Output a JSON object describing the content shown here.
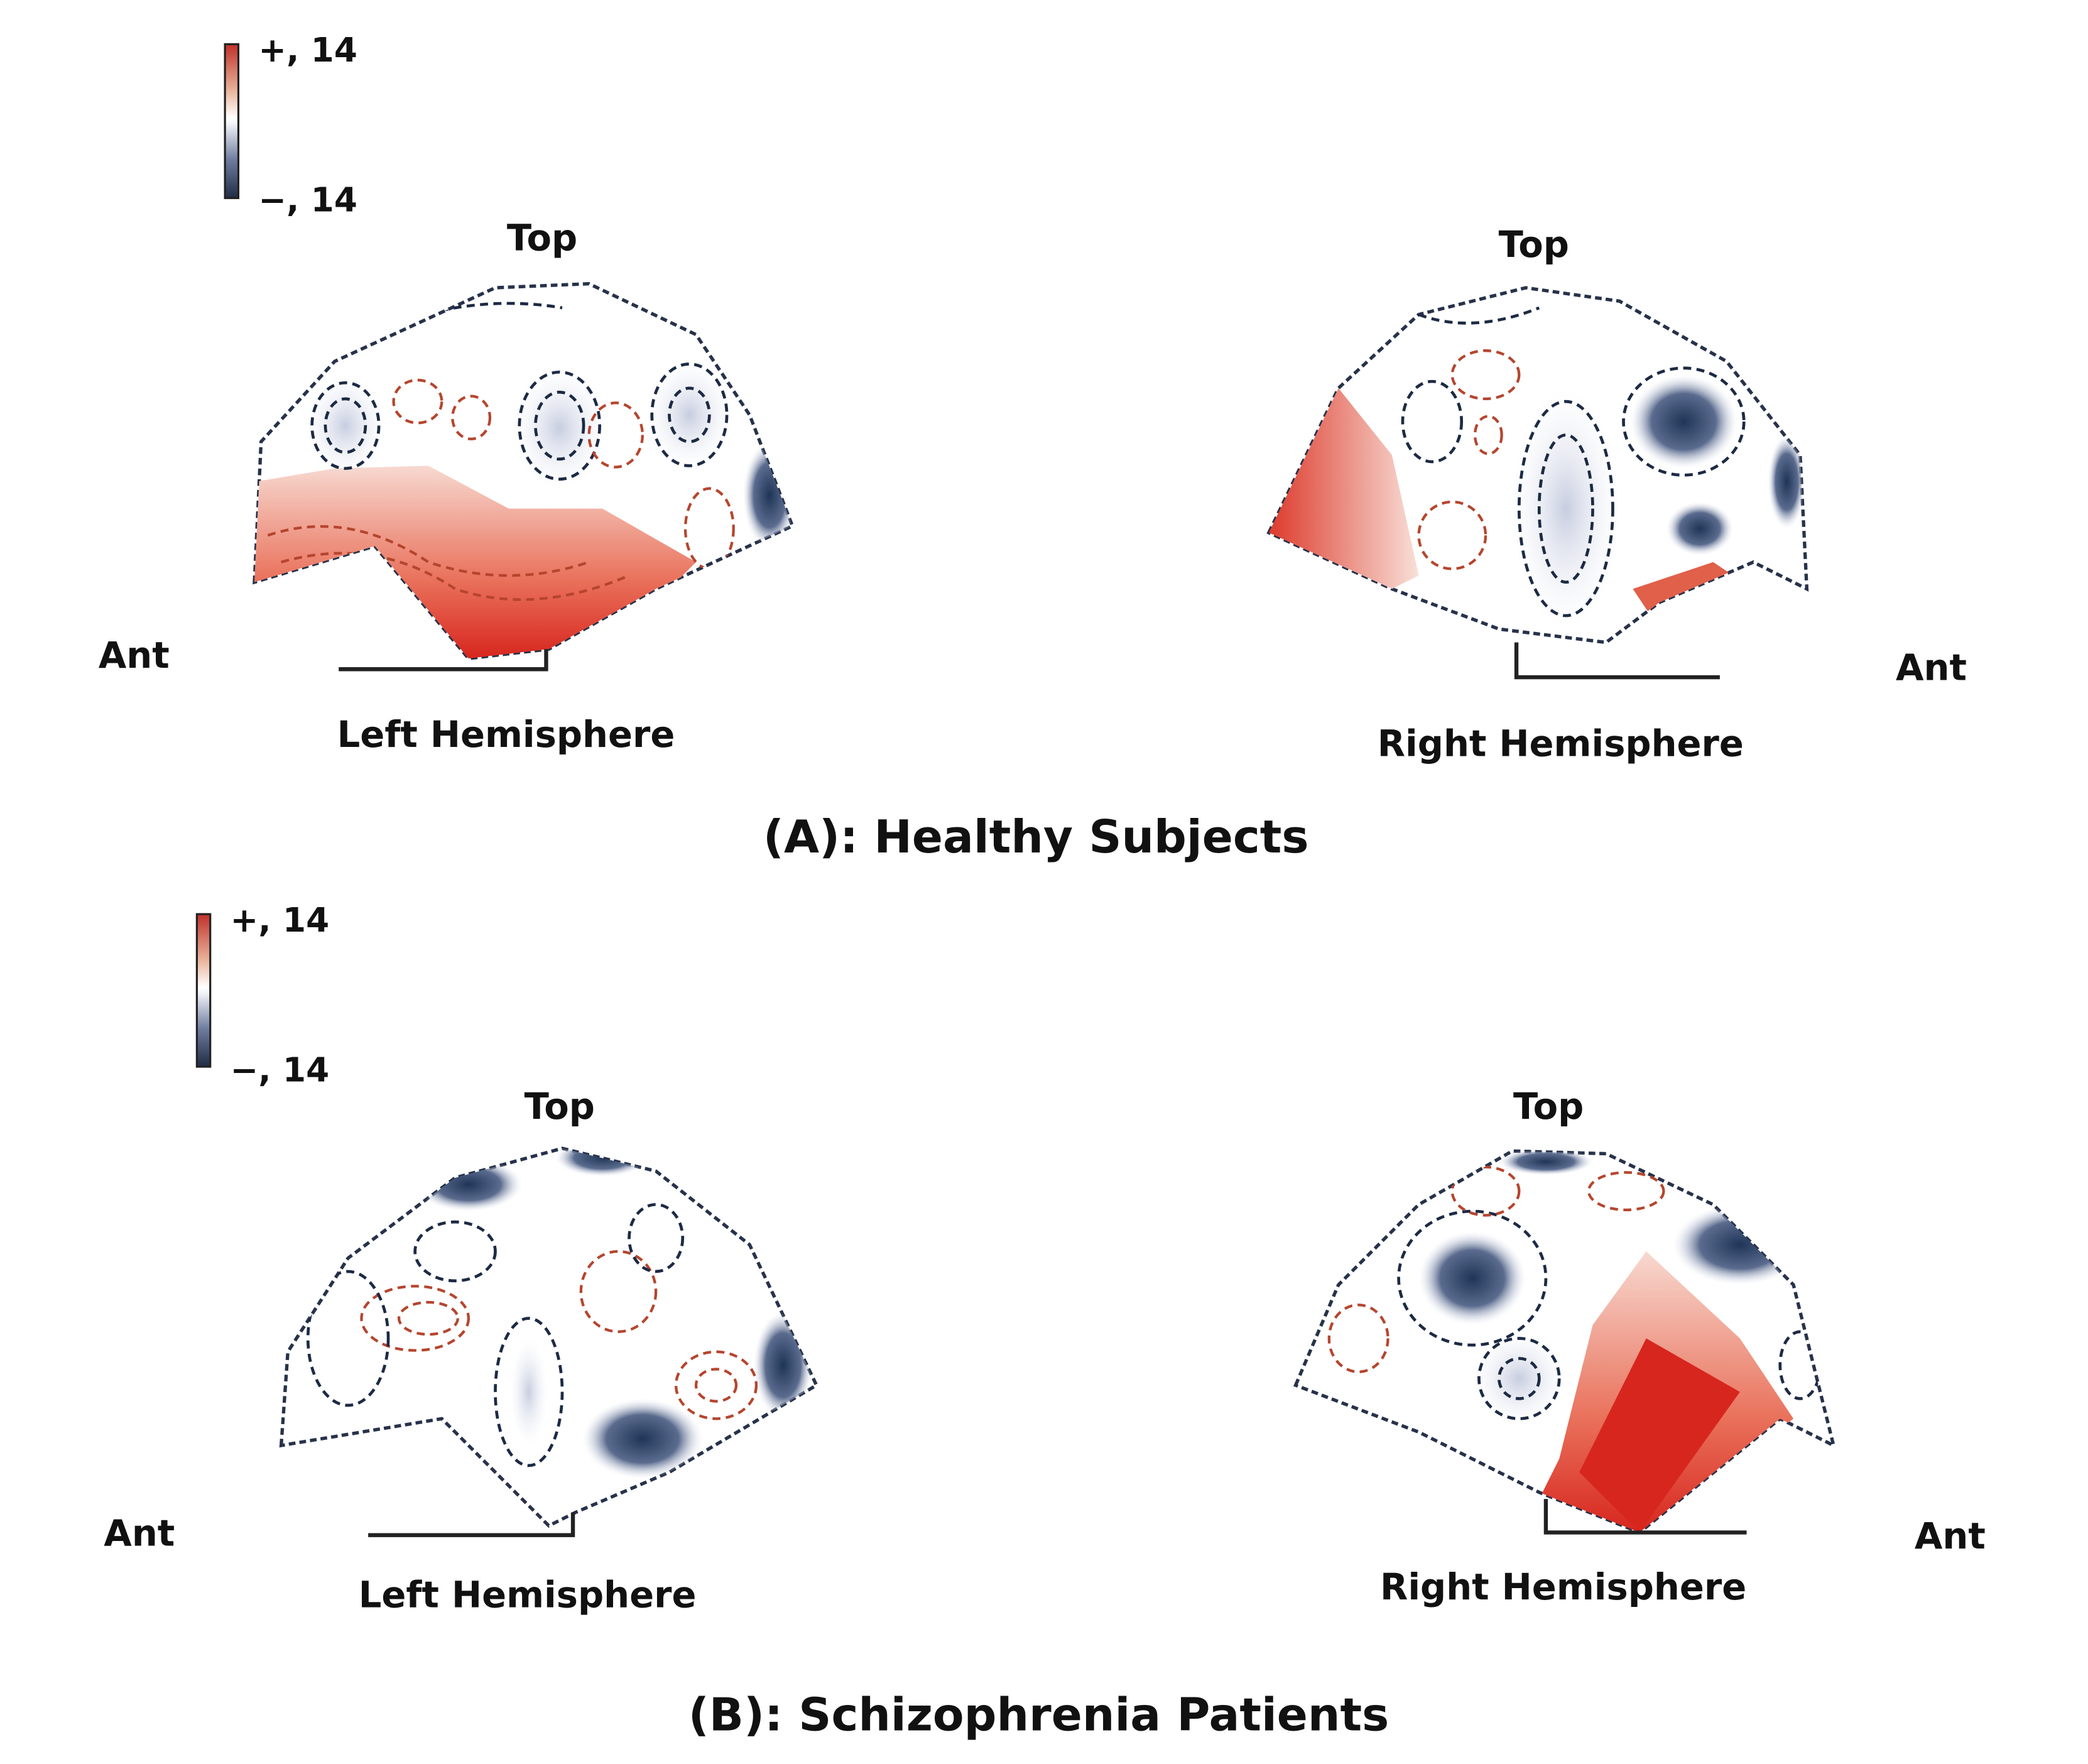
{
  "colors": {
    "positive": "#d7261e",
    "negative": "#1f3557",
    "neutral": "#ffffff"
  },
  "panels": [
    {
      "id": "A",
      "title": "(A): Healthy Subjects",
      "colorbar": {
        "max_label": "+, 14",
        "min_label": "−, 14"
      },
      "left": {
        "top_label": "Top",
        "ant_label": "Ant",
        "name": "Left Hemisphere"
      },
      "right": {
        "top_label": "Top",
        "ant_label": "Ant",
        "name": "Right Hemisphere"
      }
    },
    {
      "id": "B",
      "title": "(B): Schizophrenia Patients",
      "colorbar": {
        "max_label": "+, 14",
        "min_label": "−, 14"
      },
      "left": {
        "top_label": "Top",
        "ant_label": "Ant",
        "name": "Left Hemisphere"
      },
      "right": {
        "top_label": "Top",
        "ant_label": "Ant",
        "name": "Right Hemisphere"
      }
    }
  ]
}
